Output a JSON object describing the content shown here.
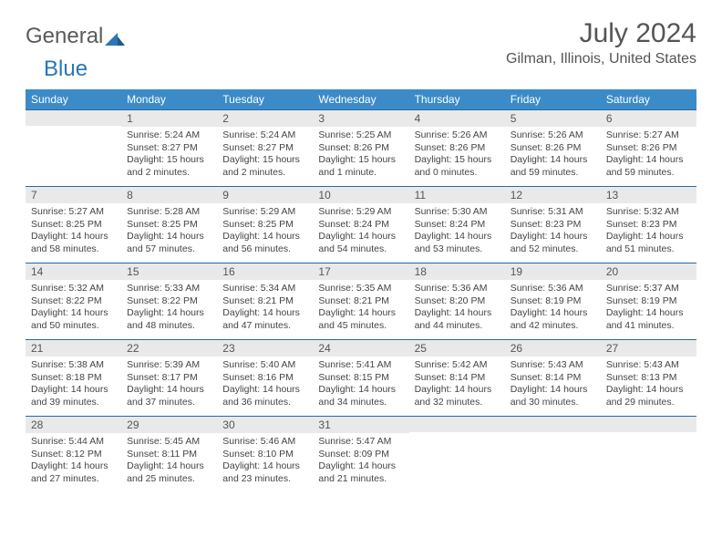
{
  "logo": {
    "part1": "General",
    "part2": "Blue"
  },
  "title": "July 2024",
  "location": "Gilman, Illinois, United States",
  "colors": {
    "header_bg": "#3b8bc9",
    "daynum_bg": "#e9e9e9",
    "daynum_border": "#2a6aa0",
    "text": "#444444",
    "logo_blue": "#2a76b8"
  },
  "day_names": [
    "Sunday",
    "Monday",
    "Tuesday",
    "Wednesday",
    "Thursday",
    "Friday",
    "Saturday"
  ],
  "weeks": [
    [
      {
        "n": "",
        "sr": "",
        "ss": "",
        "dl": ""
      },
      {
        "n": "1",
        "sr": "Sunrise: 5:24 AM",
        "ss": "Sunset: 8:27 PM",
        "dl": "Daylight: 15 hours and 2 minutes."
      },
      {
        "n": "2",
        "sr": "Sunrise: 5:24 AM",
        "ss": "Sunset: 8:27 PM",
        "dl": "Daylight: 15 hours and 2 minutes."
      },
      {
        "n": "3",
        "sr": "Sunrise: 5:25 AM",
        "ss": "Sunset: 8:26 PM",
        "dl": "Daylight: 15 hours and 1 minute."
      },
      {
        "n": "4",
        "sr": "Sunrise: 5:26 AM",
        "ss": "Sunset: 8:26 PM",
        "dl": "Daylight: 15 hours and 0 minutes."
      },
      {
        "n": "5",
        "sr": "Sunrise: 5:26 AM",
        "ss": "Sunset: 8:26 PM",
        "dl": "Daylight: 14 hours and 59 minutes."
      },
      {
        "n": "6",
        "sr": "Sunrise: 5:27 AM",
        "ss": "Sunset: 8:26 PM",
        "dl": "Daylight: 14 hours and 59 minutes."
      }
    ],
    [
      {
        "n": "7",
        "sr": "Sunrise: 5:27 AM",
        "ss": "Sunset: 8:25 PM",
        "dl": "Daylight: 14 hours and 58 minutes."
      },
      {
        "n": "8",
        "sr": "Sunrise: 5:28 AM",
        "ss": "Sunset: 8:25 PM",
        "dl": "Daylight: 14 hours and 57 minutes."
      },
      {
        "n": "9",
        "sr": "Sunrise: 5:29 AM",
        "ss": "Sunset: 8:25 PM",
        "dl": "Daylight: 14 hours and 56 minutes."
      },
      {
        "n": "10",
        "sr": "Sunrise: 5:29 AM",
        "ss": "Sunset: 8:24 PM",
        "dl": "Daylight: 14 hours and 54 minutes."
      },
      {
        "n": "11",
        "sr": "Sunrise: 5:30 AM",
        "ss": "Sunset: 8:24 PM",
        "dl": "Daylight: 14 hours and 53 minutes."
      },
      {
        "n": "12",
        "sr": "Sunrise: 5:31 AM",
        "ss": "Sunset: 8:23 PM",
        "dl": "Daylight: 14 hours and 52 minutes."
      },
      {
        "n": "13",
        "sr": "Sunrise: 5:32 AM",
        "ss": "Sunset: 8:23 PM",
        "dl": "Daylight: 14 hours and 51 minutes."
      }
    ],
    [
      {
        "n": "14",
        "sr": "Sunrise: 5:32 AM",
        "ss": "Sunset: 8:22 PM",
        "dl": "Daylight: 14 hours and 50 minutes."
      },
      {
        "n": "15",
        "sr": "Sunrise: 5:33 AM",
        "ss": "Sunset: 8:22 PM",
        "dl": "Daylight: 14 hours and 48 minutes."
      },
      {
        "n": "16",
        "sr": "Sunrise: 5:34 AM",
        "ss": "Sunset: 8:21 PM",
        "dl": "Daylight: 14 hours and 47 minutes."
      },
      {
        "n": "17",
        "sr": "Sunrise: 5:35 AM",
        "ss": "Sunset: 8:21 PM",
        "dl": "Daylight: 14 hours and 45 minutes."
      },
      {
        "n": "18",
        "sr": "Sunrise: 5:36 AM",
        "ss": "Sunset: 8:20 PM",
        "dl": "Daylight: 14 hours and 44 minutes."
      },
      {
        "n": "19",
        "sr": "Sunrise: 5:36 AM",
        "ss": "Sunset: 8:19 PM",
        "dl": "Daylight: 14 hours and 42 minutes."
      },
      {
        "n": "20",
        "sr": "Sunrise: 5:37 AM",
        "ss": "Sunset: 8:19 PM",
        "dl": "Daylight: 14 hours and 41 minutes."
      }
    ],
    [
      {
        "n": "21",
        "sr": "Sunrise: 5:38 AM",
        "ss": "Sunset: 8:18 PM",
        "dl": "Daylight: 14 hours and 39 minutes."
      },
      {
        "n": "22",
        "sr": "Sunrise: 5:39 AM",
        "ss": "Sunset: 8:17 PM",
        "dl": "Daylight: 14 hours and 37 minutes."
      },
      {
        "n": "23",
        "sr": "Sunrise: 5:40 AM",
        "ss": "Sunset: 8:16 PM",
        "dl": "Daylight: 14 hours and 36 minutes."
      },
      {
        "n": "24",
        "sr": "Sunrise: 5:41 AM",
        "ss": "Sunset: 8:15 PM",
        "dl": "Daylight: 14 hours and 34 minutes."
      },
      {
        "n": "25",
        "sr": "Sunrise: 5:42 AM",
        "ss": "Sunset: 8:14 PM",
        "dl": "Daylight: 14 hours and 32 minutes."
      },
      {
        "n": "26",
        "sr": "Sunrise: 5:43 AM",
        "ss": "Sunset: 8:14 PM",
        "dl": "Daylight: 14 hours and 30 minutes."
      },
      {
        "n": "27",
        "sr": "Sunrise: 5:43 AM",
        "ss": "Sunset: 8:13 PM",
        "dl": "Daylight: 14 hours and 29 minutes."
      }
    ],
    [
      {
        "n": "28",
        "sr": "Sunrise: 5:44 AM",
        "ss": "Sunset: 8:12 PM",
        "dl": "Daylight: 14 hours and 27 minutes."
      },
      {
        "n": "29",
        "sr": "Sunrise: 5:45 AM",
        "ss": "Sunset: 8:11 PM",
        "dl": "Daylight: 14 hours and 25 minutes."
      },
      {
        "n": "30",
        "sr": "Sunrise: 5:46 AM",
        "ss": "Sunset: 8:10 PM",
        "dl": "Daylight: 14 hours and 23 minutes."
      },
      {
        "n": "31",
        "sr": "Sunrise: 5:47 AM",
        "ss": "Sunset: 8:09 PM",
        "dl": "Daylight: 14 hours and 21 minutes."
      },
      {
        "n": "",
        "sr": "",
        "ss": "",
        "dl": ""
      },
      {
        "n": "",
        "sr": "",
        "ss": "",
        "dl": ""
      },
      {
        "n": "",
        "sr": "",
        "ss": "",
        "dl": ""
      }
    ]
  ]
}
